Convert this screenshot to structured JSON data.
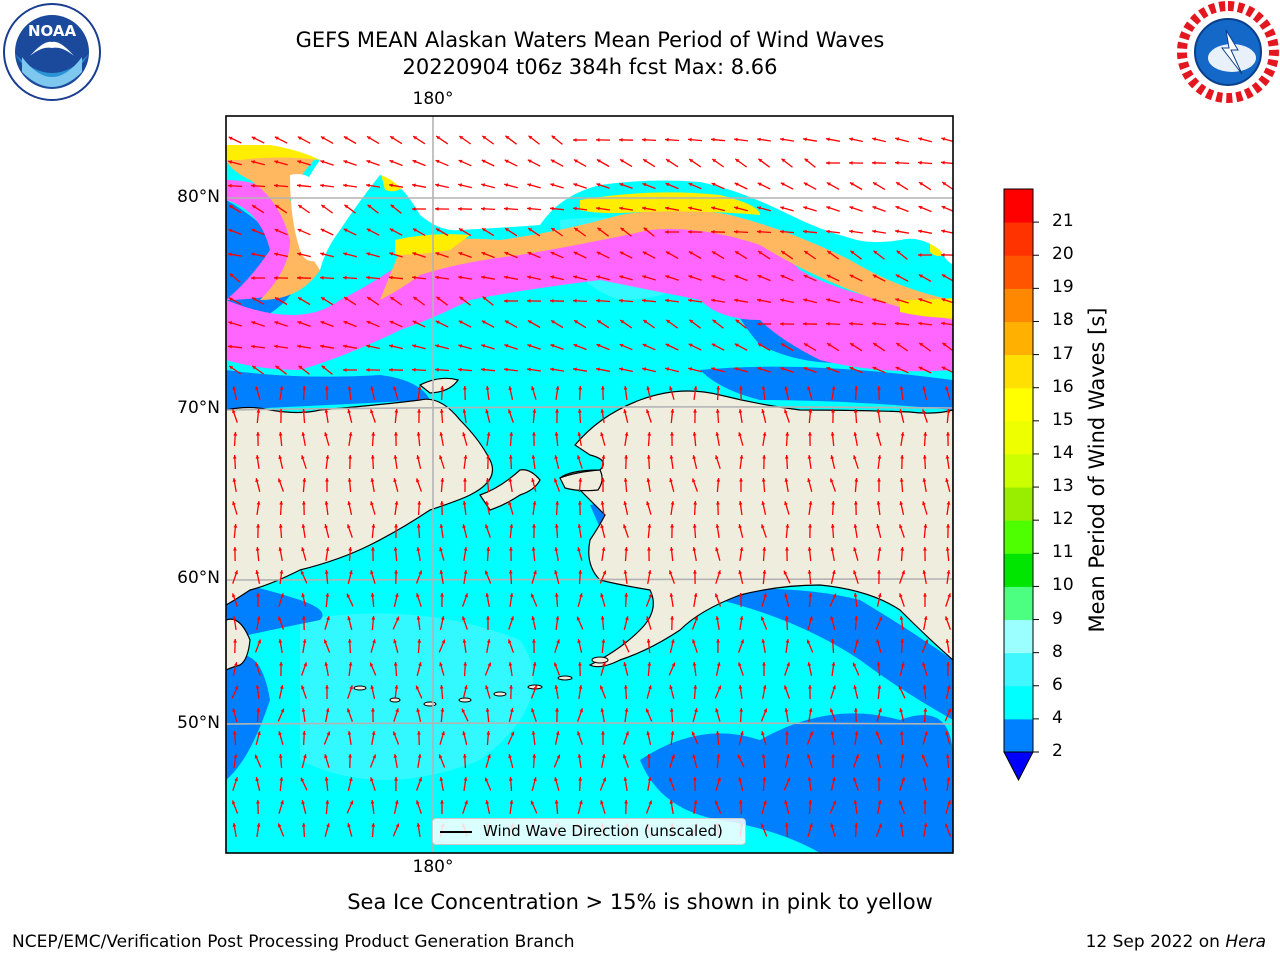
{
  "title_line1": "GEFS MEAN Alaskan Waters Mean Period of Wind Waves",
  "title_line2": "20220904 t06z 384h fcst   Max: 8.66",
  "logos": {
    "left": {
      "name": "NOAA",
      "ring_text": "NATIONAL OCEANIC AND ATMOSPHERIC ADMINISTRATION · U.S. DEPARTMENT OF COMMERCE",
      "center_text": "NOAA"
    },
    "right": {
      "name": "NWS",
      "ring_text": "NATIONAL WEATHER SERVICE"
    }
  },
  "map": {
    "lon_labels_top": [
      "180°"
    ],
    "lon_labels_bottom": [
      "180°"
    ],
    "lat_labels": [
      "80°N",
      "70°N",
      "60°N",
      "50°N"
    ],
    "legend_text": "Wind Wave Direction (unscaled)",
    "colors": {
      "ocean_cyan": "#00ffff",
      "ocean_blue": "#0080ff",
      "land": "#efedde",
      "ice_pink": "#ff66ff",
      "ice_orange": "#ffb860",
      "ice_yellow": "#ffee00",
      "arrow": "#ff0000",
      "grid": "#b3b3b3"
    }
  },
  "colorbar": {
    "label": "Mean Period of Wind Waves [s]",
    "ticks": [
      "2",
      "4",
      "6",
      "8",
      "9",
      "10",
      "11",
      "12",
      "13",
      "14",
      "15",
      "16",
      "17",
      "18",
      "19",
      "20",
      "21"
    ],
    "levels": [
      2,
      4,
      6,
      8,
      9,
      10,
      11,
      12,
      13,
      14,
      15,
      16,
      17,
      18,
      19,
      20,
      21
    ],
    "colors": [
      "#0080ff",
      "#00ffff",
      "#3ff7ff",
      "#9cffff",
      "#4cff80",
      "#00e600",
      "#4dff00",
      "#99ee00",
      "#ccff00",
      "#eeff00",
      "#ffff00",
      "#ffe000",
      "#ffb000",
      "#ff8800",
      "#ff5500",
      "#ff3300",
      "#ff0000"
    ],
    "extend_color": "#0000ff"
  },
  "footnote": "Sea Ice Concentration > 15% is shown in pink to yellow",
  "footer_left": "NCEP/EMC/Verification Post Processing Product Generation Branch",
  "footer_right_prefix": "12 Sep 2022 on ",
  "footer_right_host": "Hera"
}
